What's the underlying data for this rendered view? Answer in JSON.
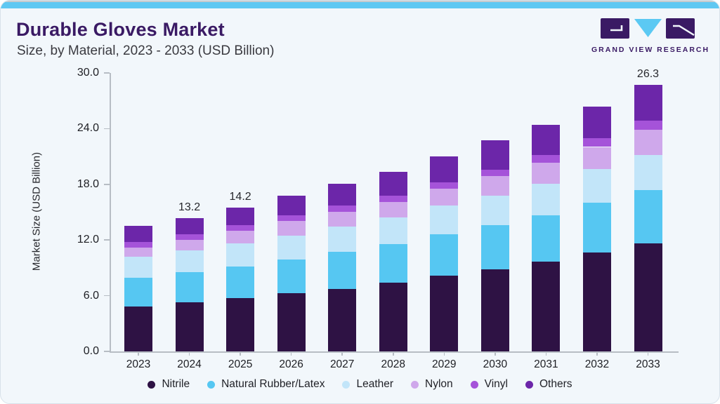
{
  "page": {
    "top_strip_color": "#5fc8f2",
    "card_bg": "#f2f7fb",
    "accent_purple": "#3A1A64"
  },
  "header": {
    "title": "Durable Gloves Market",
    "subtitle": "Size, by Material, 2023 - 2033 (USD Billion)"
  },
  "logo": {
    "text": "GRAND VIEW RESEARCH",
    "purple": "#3A1A64",
    "blue": "#5BC9F3"
  },
  "chart_data": {
    "type": "bar",
    "stacked": true,
    "title": "Durable Gloves Market Size, by Material, 2023 - 2033 (USD Billion)",
    "categories": [
      "2023",
      "2024",
      "2025",
      "2026",
      "2027",
      "2028",
      "2029",
      "2030",
      "2031",
      "2032",
      "2033"
    ],
    "series": [
      {
        "name": "Nitrile",
        "color": "#2E1244",
        "values": [
          4.45,
          4.85,
          5.25,
          5.75,
          6.2,
          6.8,
          7.5,
          8.1,
          8.9,
          9.75,
          10.7
        ]
      },
      {
        "name": "Natural Rubber/Latex",
        "color": "#56C7F2",
        "values": [
          2.85,
          2.95,
          3.15,
          3.35,
          3.65,
          3.8,
          4.05,
          4.4,
          4.55,
          4.95,
          5.25
        ]
      },
      {
        "name": "Leather",
        "color": "#C2E5F9",
        "values": [
          2.05,
          2.15,
          2.3,
          2.35,
          2.5,
          2.65,
          2.85,
          2.9,
          3.1,
          3.3,
          3.45
        ]
      },
      {
        "name": "Nylon",
        "color": "#CFA8EB",
        "values": [
          0.9,
          1.05,
          1.25,
          1.45,
          1.45,
          1.5,
          1.65,
          1.9,
          2.1,
          2.2,
          2.5
        ]
      },
      {
        "name": "Vinyl",
        "color": "#A553D9",
        "values": [
          0.55,
          0.55,
          0.5,
          0.55,
          0.6,
          0.65,
          0.65,
          0.65,
          0.75,
          0.85,
          0.9
        ]
      },
      {
        "name": "Others",
        "color": "#6C26A9",
        "values": [
          1.6,
          1.65,
          1.75,
          1.9,
          2.15,
          2.35,
          2.55,
          2.9,
          3.0,
          3.15,
          3.5
        ]
      }
    ],
    "totals": [
      12.4,
      13.2,
      14.2,
      15.35,
      16.55,
      17.75,
      19.25,
      20.85,
      22.4,
      24.2,
      26.3
    ],
    "bar_labels": {
      "2024": "13.2",
      "2025": "14.2",
      "2033": "26.3"
    },
    "ylabel": "Market Size (USD Billion)",
    "ylim": [
      0,
      30
    ],
    "ytick_values": [
      0,
      6,
      12,
      18,
      24,
      30
    ],
    "ytick_labels": [
      "0.0",
      "6.0",
      "12.0",
      "18.0",
      "24.0",
      "30.0"
    ],
    "grid": false,
    "legend_position": "bottom"
  }
}
